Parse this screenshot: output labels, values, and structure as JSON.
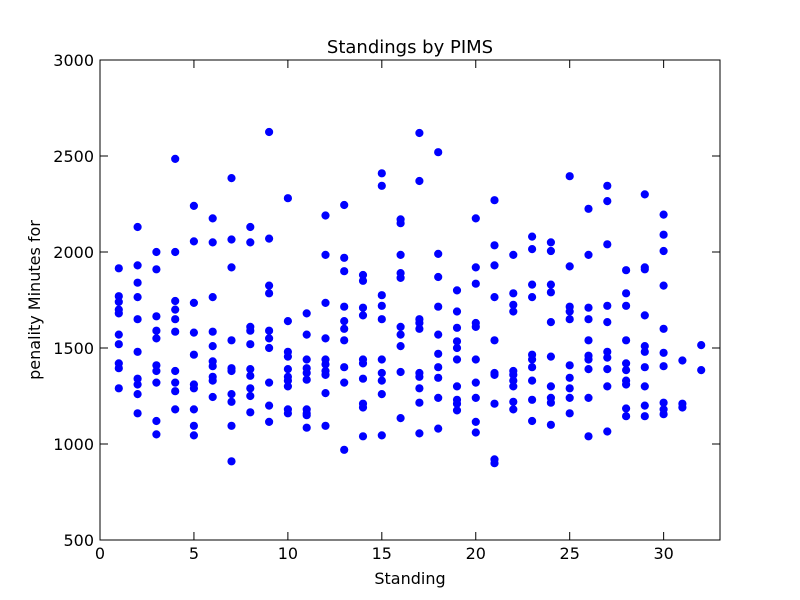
{
  "chart_data": {
    "type": "scatter",
    "title": "Standings by PIMS",
    "xlabel": "Standing",
    "ylabel": "penality Minutes for",
    "xlim": [
      0,
      33
    ],
    "ylim": [
      500,
      3000
    ],
    "xticks": [
      0,
      5,
      10,
      15,
      20,
      25,
      30
    ],
    "yticks": [
      500,
      1000,
      1500,
      2000,
      2500,
      3000
    ],
    "grid": false,
    "marker_color": "#0000ff",
    "series": [
      {
        "x": [
          1,
          1,
          1,
          1,
          1,
          1,
          1,
          1,
          1,
          1,
          2,
          2,
          2,
          2,
          2,
          2,
          2,
          2,
          2,
          2,
          3,
          3,
          3,
          3,
          3,
          3,
          3,
          3,
          3,
          3,
          4,
          4,
          4,
          4,
          4,
          4,
          4,
          4,
          4,
          4,
          5,
          5,
          5,
          5,
          5,
          5,
          5,
          5,
          5,
          5,
          6,
          6,
          6,
          6,
          6,
          6,
          6,
          6,
          6,
          6,
          7,
          7,
          7,
          7,
          7,
          7,
          7,
          7,
          7,
          7,
          8,
          8,
          8,
          8,
          8,
          8,
          8,
          8,
          8,
          8,
          9,
          9,
          9,
          9,
          9,
          9,
          9,
          9,
          9,
          9,
          10,
          10,
          10,
          10,
          10,
          10,
          10,
          10,
          10,
          10,
          11,
          11,
          11,
          11,
          11,
          11,
          11,
          11,
          11,
          11,
          12,
          12,
          12,
          12,
          12,
          12,
          12,
          12,
          12,
          12,
          13,
          13,
          13,
          13,
          13,
          13,
          13,
          13,
          13,
          13,
          14,
          14,
          14,
          14,
          14,
          14,
          14,
          14,
          14,
          14,
          15,
          15,
          15,
          15,
          15,
          15,
          15,
          15,
          15,
          15,
          16,
          16,
          16,
          16,
          16,
          16,
          16,
          16,
          16,
          16,
          17,
          17,
          17,
          17,
          17,
          17,
          17,
          17,
          17,
          17,
          18,
          18,
          18,
          18,
          18,
          18,
          18,
          18,
          18,
          18,
          19,
          19,
          19,
          19,
          19,
          19,
          19,
          19,
          19,
          19,
          20,
          20,
          20,
          20,
          20,
          20,
          20,
          20,
          20,
          20,
          21,
          21,
          21,
          21,
          21,
          21,
          21,
          21,
          21,
          21,
          22,
          22,
          22,
          22,
          22,
          22,
          22,
          22,
          22,
          22,
          23,
          23,
          23,
          23,
          23,
          23,
          23,
          23,
          23,
          23,
          24,
          24,
          24,
          24,
          24,
          24,
          24,
          24,
          24,
          24,
          25,
          25,
          25,
          25,
          25,
          25,
          25,
          25,
          25,
          25,
          26,
          26,
          26,
          26,
          26,
          26,
          26,
          26,
          26,
          26,
          27,
          27,
          27,
          27,
          27,
          27,
          27,
          27,
          27,
          27,
          28,
          28,
          28,
          28,
          28,
          28,
          28,
          28,
          28,
          28,
          29,
          29,
          29,
          29,
          29,
          29,
          29,
          29,
          29,
          29,
          30,
          30,
          30,
          30,
          30,
          30,
          30,
          30,
          30,
          30,
          31,
          31,
          31,
          32,
          32
        ],
        "y": [
          1915,
          1770,
          1740,
          1700,
          1680,
          1570,
          1520,
          1420,
          1395,
          1290,
          2130,
          1930,
          1840,
          1765,
          1650,
          1480,
          1340,
          1310,
          1260,
          1160,
          2000,
          1910,
          1665,
          1590,
          1550,
          1410,
          1380,
          1320,
          1120,
          1050,
          2485,
          2000,
          1745,
          1700,
          1650,
          1585,
          1380,
          1320,
          1275,
          1180,
          2240,
          2055,
          1735,
          1580,
          1465,
          1310,
          1290,
          1180,
          1095,
          1045,
          2175,
          2050,
          1765,
          1585,
          1510,
          1430,
          1405,
          1350,
          1330,
          1245,
          2385,
          2065,
          1920,
          1540,
          1395,
          1380,
          1260,
          1220,
          1095,
          910,
          2130,
          2050,
          1610,
          1590,
          1520,
          1390,
          1355,
          1290,
          1250,
          1165,
          2625,
          2070,
          1825,
          1785,
          1590,
          1550,
          1500,
          1320,
          1200,
          1115,
          2280,
          1640,
          1480,
          1455,
          1390,
          1350,
          1330,
          1300,
          1180,
          1160,
          1680,
          1570,
          1440,
          1395,
          1370,
          1335,
          1160,
          1150,
          1085,
          1180,
          2190,
          1985,
          1735,
          1550,
          1440,
          1415,
          1380,
          1360,
          1265,
          1095,
          2245,
          1970,
          1900,
          1715,
          1640,
          1600,
          1540,
          1400,
          1320,
          970,
          1880,
          1850,
          1710,
          1670,
          1440,
          1420,
          1340,
          1210,
          1190,
          1040,
          2410,
          2345,
          1775,
          1720,
          1650,
          1440,
          1370,
          1330,
          1260,
          1045,
          2170,
          2150,
          1985,
          1890,
          1865,
          1610,
          1570,
          1510,
          1375,
          1135,
          2620,
          2370,
          1650,
          1630,
          1600,
          1370,
          1350,
          1290,
          1215,
          1055,
          2520,
          1990,
          1870,
          1715,
          1570,
          1470,
          1400,
          1345,
          1240,
          1080,
          1800,
          1690,
          1605,
          1535,
          1500,
          1440,
          1300,
          1230,
          1210,
          1175,
          2175,
          1920,
          1835,
          1630,
          1610,
          1440,
          1320,
          1240,
          1115,
          1060,
          2270,
          2035,
          1930,
          1765,
          1540,
          1370,
          1360,
          1210,
          920,
          900,
          1985,
          1785,
          1725,
          1690,
          1380,
          1360,
          1330,
          1300,
          1220,
          1180,
          2080,
          2015,
          1830,
          1765,
          1465,
          1440,
          1400,
          1330,
          1230,
          1120,
          2050,
          2005,
          1830,
          1790,
          1635,
          1455,
          1300,
          1240,
          1215,
          1100,
          2395,
          1925,
          1715,
          1690,
          1650,
          1410,
          1345,
          1290,
          1240,
          1160,
          2225,
          1985,
          1710,
          1650,
          1540,
          1460,
          1440,
          1390,
          1240,
          1040,
          2345,
          2265,
          2040,
          1720,
          1635,
          1480,
          1450,
          1390,
          1300,
          1065,
          1905,
          1785,
          1720,
          1540,
          1420,
          1385,
          1330,
          1310,
          1185,
          1145,
          2300,
          1920,
          1910,
          1670,
          1510,
          1480,
          1400,
          1300,
          1200,
          1145,
          2195,
          2090,
          2005,
          1825,
          1600,
          1475,
          1405,
          1215,
          1180,
          1155,
          1435,
          1210,
          1190,
          1515,
          1385
        ]
      }
    ]
  }
}
